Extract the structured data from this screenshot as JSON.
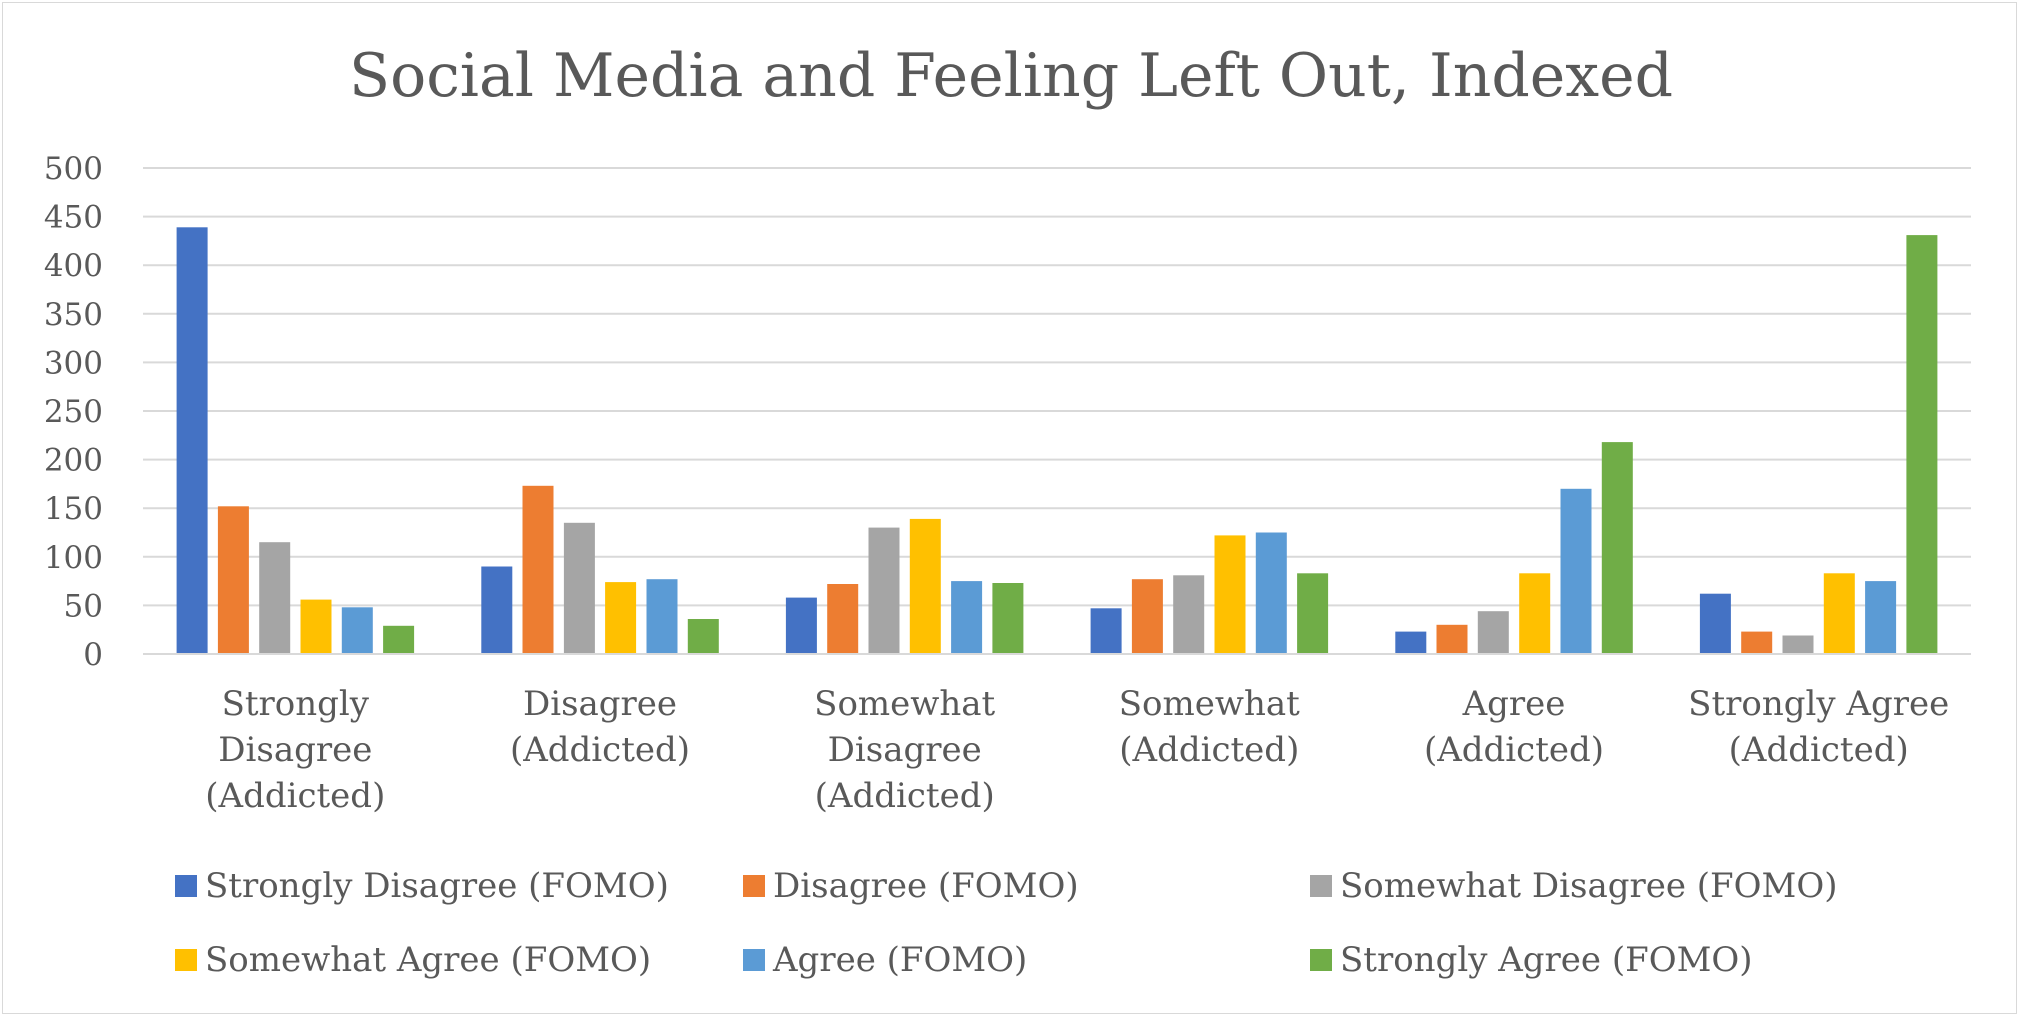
{
  "chart_data": {
    "type": "bar",
    "title": "Social Media and Feeling Left Out, Indexed",
    "xlabel": "",
    "ylabel": "",
    "ylim": [
      0,
      500
    ],
    "yticks": [
      0,
      50,
      100,
      150,
      200,
      250,
      300,
      350,
      400,
      450,
      500
    ],
    "grid": true,
    "legend_position": "bottom",
    "categories": [
      [
        "Strongly",
        "Disagree",
        "(Addicted)"
      ],
      [
        "Disagree",
        "(Addicted)"
      ],
      [
        "Somewhat",
        "Disagree",
        "(Addicted)"
      ],
      [
        "Somewhat",
        "(Addicted)"
      ],
      [
        "Agree",
        "(Addicted)"
      ],
      [
        "Strongly Agree",
        "(Addicted)"
      ]
    ],
    "series": [
      {
        "name": "Strongly Disagree (FOMO)",
        "color": "#4472c4",
        "values": [
          439,
          90,
          58,
          47,
          23,
          62
        ]
      },
      {
        "name": "Disagree (FOMO)",
        "color": "#ed7d31",
        "values": [
          152,
          173,
          72,
          77,
          30,
          23
        ]
      },
      {
        "name": "Somewhat Disagree (FOMO)",
        "color": "#a5a5a5",
        "values": [
          115,
          135,
          130,
          81,
          44,
          19
        ]
      },
      {
        "name": "Somewhat Agree (FOMO)",
        "color": "#ffc000",
        "values": [
          56,
          74,
          139,
          122,
          83,
          83
        ]
      },
      {
        "name": "Agree (FOMO)",
        "color": "#5b9bd5",
        "values": [
          48,
          77,
          75,
          125,
          170,
          75
        ]
      },
      {
        "name": "Strongly Agree (FOMO)",
        "color": "#70ad47",
        "values": [
          29,
          36,
          73,
          83,
          218,
          431
        ]
      }
    ]
  },
  "colors": {
    "gridline": "#d9d9d9",
    "text": "#595959",
    "frame": "#d9d9d9"
  }
}
